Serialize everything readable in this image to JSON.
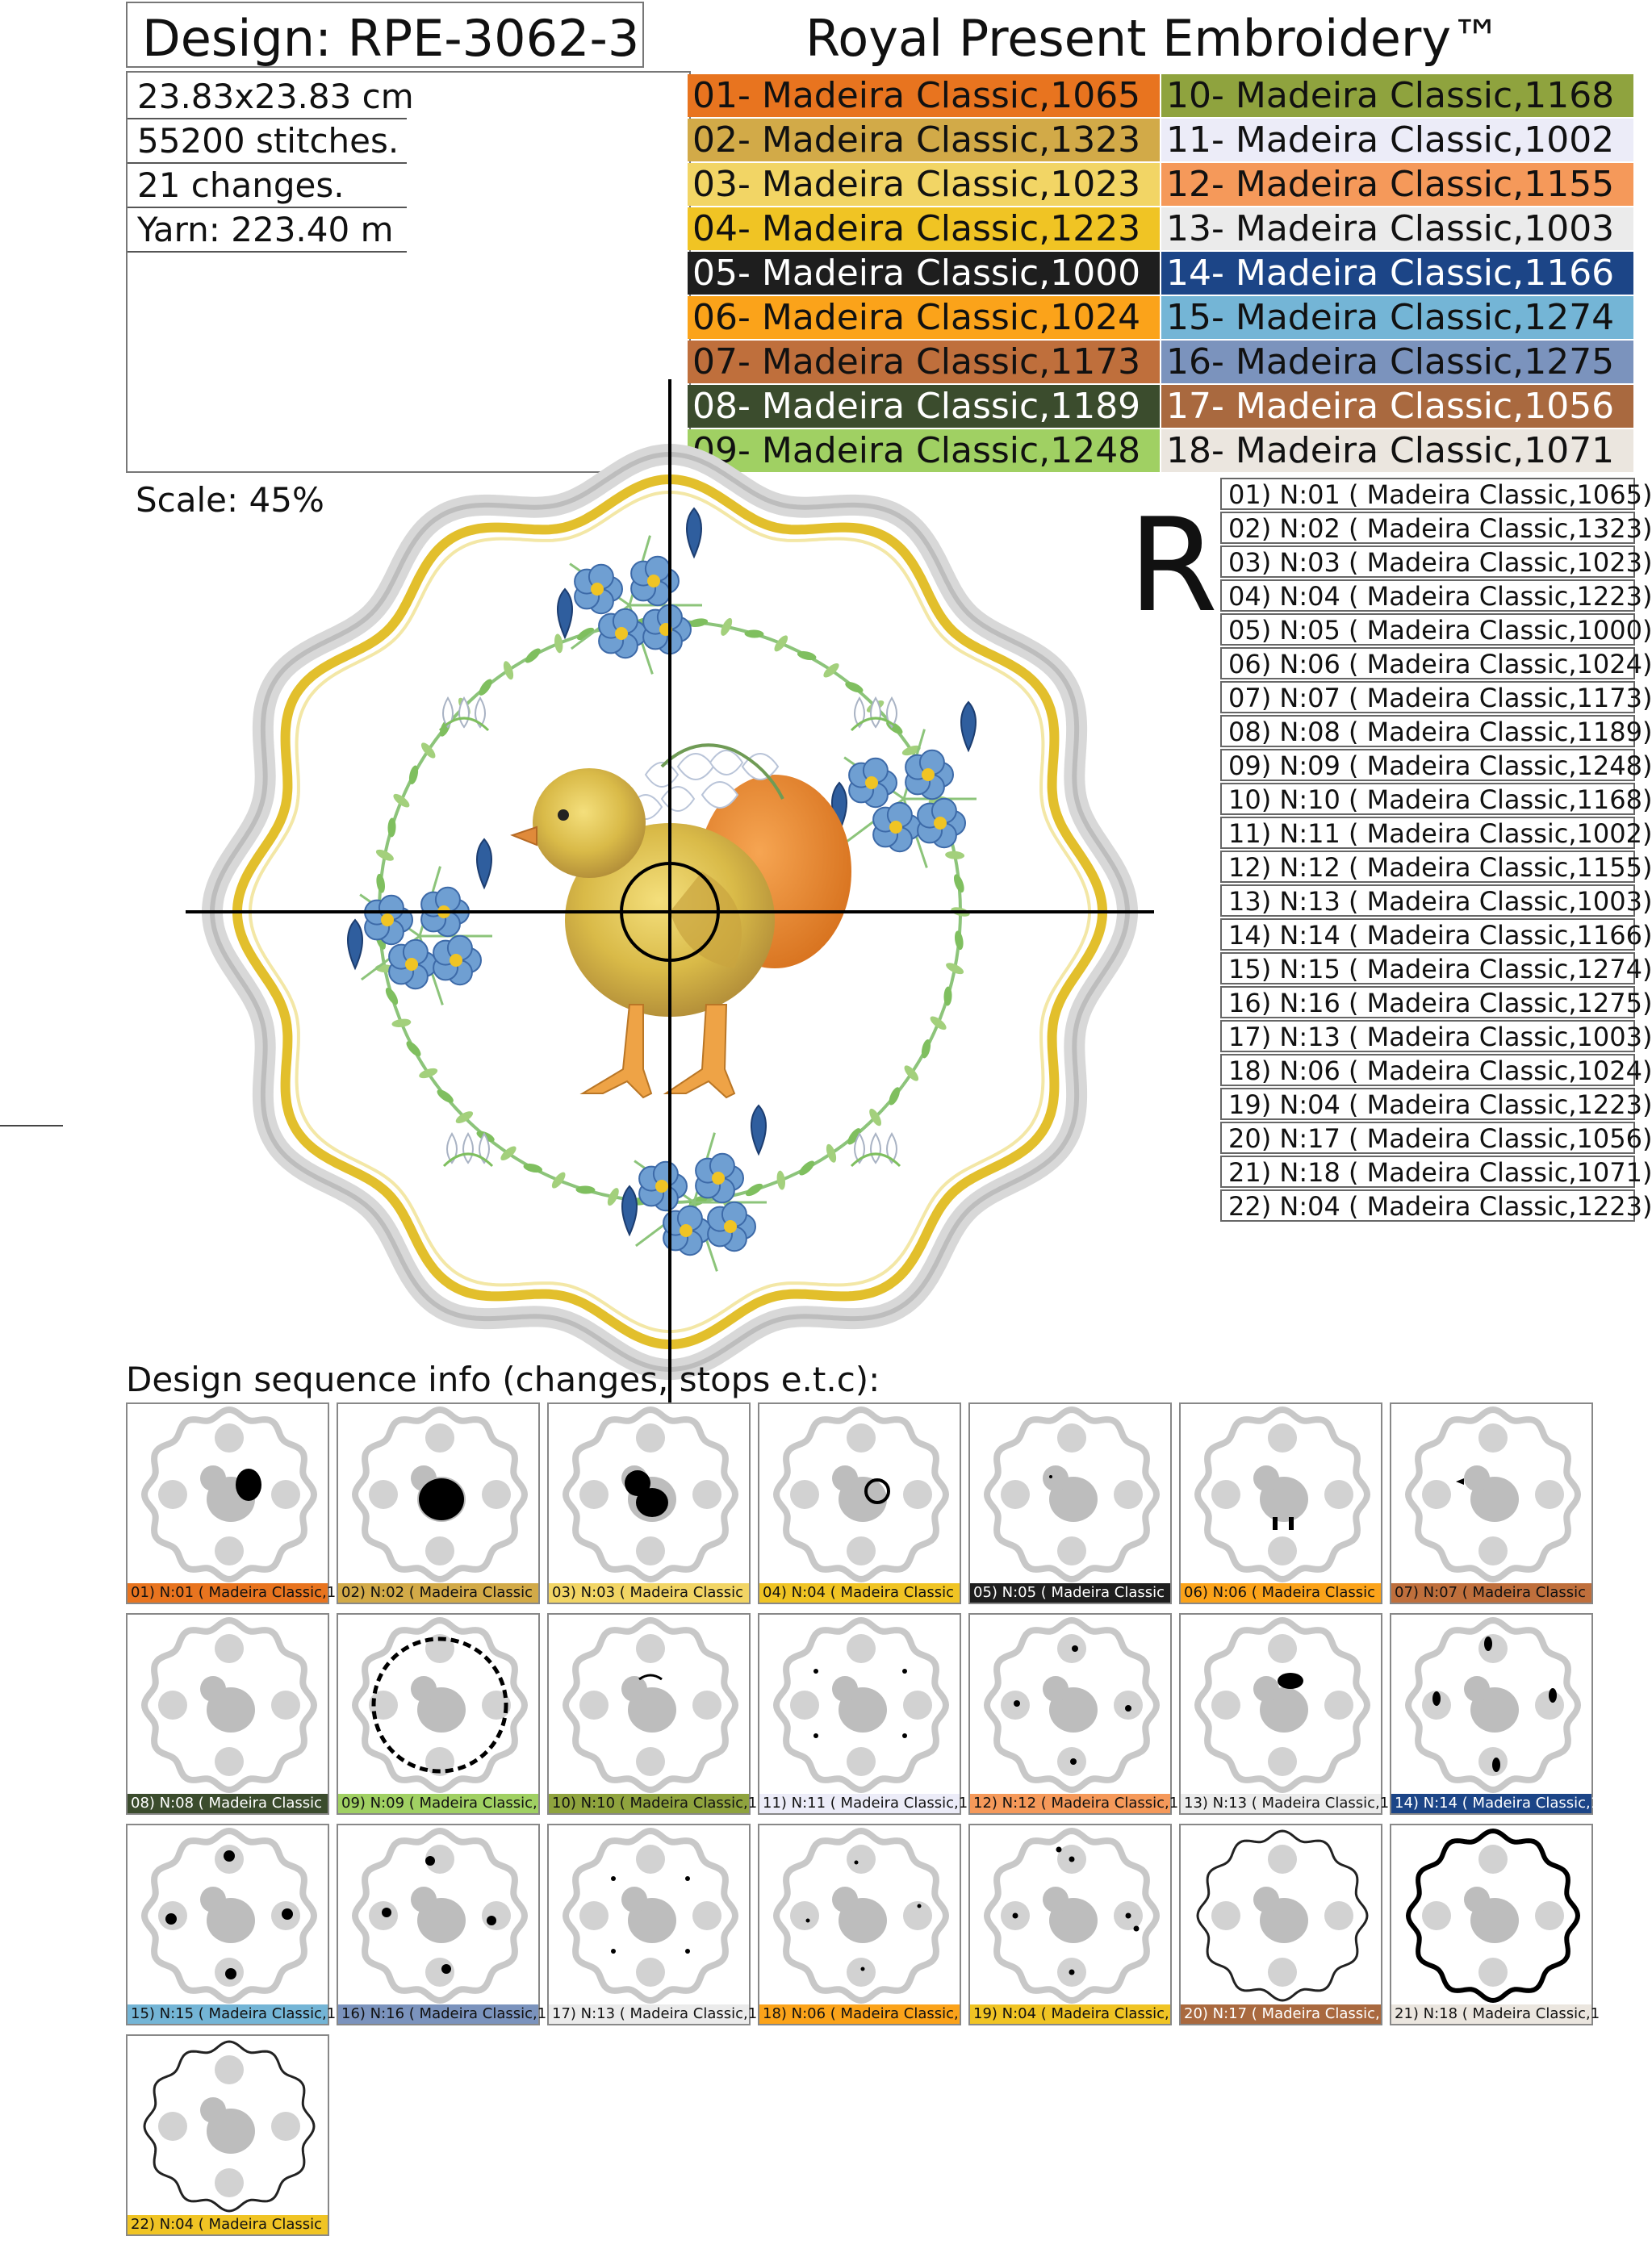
{
  "header": {
    "design_title": "Design: RPE-3062-3",
    "brand": "Royal Present Embroidery™"
  },
  "info": {
    "size": "23.83x23.83 cm",
    "stitches": "55200 stitches.",
    "changes": "21 changes.",
    "yarn": "Yarn: 223.40 m"
  },
  "palette": [
    {
      "label": "01- Madeira Classic,1065",
      "color": "#e8741f",
      "text": "#111111"
    },
    {
      "label": "02- Madeira Classic,1323",
      "color": "#d2aa48",
      "text": "#111111"
    },
    {
      "label": "03- Madeira Classic,1023",
      "color": "#f2d565",
      "text": "#111111"
    },
    {
      "label": "04- Madeira Classic,1223",
      "color": "#f0c424",
      "text": "#111111"
    },
    {
      "label": "05- Madeira Classic,1000",
      "color": "#1e1e1e",
      "text": "#ffffff"
    },
    {
      "label": "06- Madeira Classic,1024",
      "color": "#fba31a",
      "text": "#111111"
    },
    {
      "label": "07- Madeira Classic,1173",
      "color": "#bf6f3c",
      "text": "#111111"
    },
    {
      "label": "08- Madeira Classic,1189",
      "color": "#3b4c2d",
      "text": "#ffffff"
    },
    {
      "label": "09- Madeira Classic,1248",
      "color": "#a0d063",
      "text": "#111111"
    },
    {
      "label": "10- Madeira Classic,1168",
      "color": "#8fa33e",
      "text": "#111111"
    },
    {
      "label": "11- Madeira Classic,1002",
      "color": "#ececf8",
      "text": "#111111"
    },
    {
      "label": "12- Madeira Classic,1155",
      "color": "#f5995a",
      "text": "#111111"
    },
    {
      "label": "13- Madeira Classic,1003",
      "color": "#ebebeb",
      "text": "#111111"
    },
    {
      "label": "14- Madeira Classic,1166",
      "color": "#1c4587",
      "text": "#ffffff"
    },
    {
      "label": "15- Madeira Classic,1274",
      "color": "#74b5d6",
      "text": "#111111"
    },
    {
      "label": "16- Madeira Classic,1275",
      "color": "#7b93bd",
      "text": "#111111"
    },
    {
      "label": "17- Madeira Classic,1056",
      "color": "#a9693f",
      "text": "#ffffff"
    },
    {
      "label": "18- Madeira Classic,1071",
      "color": "#ebe6df",
      "text": "#111111"
    }
  ],
  "scale": "Scale: 45%",
  "r_mark": "R",
  "stops": [
    "01) N:01 ( Madeira Classic,1065)",
    "02) N:02 ( Madeira Classic,1323)",
    "03) N:03 ( Madeira Classic,1023)",
    "04) N:04 ( Madeira Classic,1223)",
    "05) N:05 ( Madeira Classic,1000)",
    "06) N:06 ( Madeira Classic,1024)",
    "07) N:07 ( Madeira Classic,1173)",
    "08) N:08 ( Madeira Classic,1189)",
    "09) N:09 ( Madeira Classic,1248)",
    "10) N:10 ( Madeira Classic,1168)",
    "11) N:11 ( Madeira Classic,1002)",
    "12) N:12 ( Madeira Classic,1155)",
    "13) N:13 ( Madeira Classic,1003)",
    "14) N:14 ( Madeira Classic,1166)",
    "15) N:15 ( Madeira Classic,1274)",
    "16) N:16 ( Madeira Classic,1275)",
    "17) N:13 ( Madeira Classic,1003)",
    "18) N:06 ( Madeira Classic,1024)",
    "19) N:04 ( Madeira Classic,1223)",
    "20) N:17 ( Madeira Classic,1056)",
    "21) N:18 ( Madeira Classic,1071)",
    "22) N:04 ( Madeira Classic,1223)"
  ],
  "sequence_title": "Design sequence info (changes, stops e.t.c):",
  "thumbnails": [
    {
      "caption": "01) N:01 ( Madeira Classic,1",
      "color": "#e8741f",
      "text": "#111111",
      "part": "egg"
    },
    {
      "caption": "02) N:02 ( Madeira Classic",
      "color": "#d2aa48",
      "text": "#111111",
      "part": "chick-body"
    },
    {
      "caption": "03) N:03 ( Madeira Classic",
      "color": "#f2d565",
      "text": "#111111",
      "part": "chick-head"
    },
    {
      "caption": "04) N:04 ( Madeira Classic",
      "color": "#f0c424",
      "text": "#111111",
      "part": "chick-detail"
    },
    {
      "caption": "05) N:05 ( Madeira Classic",
      "color": "#1e1e1e",
      "text": "#ffffff",
      "part": "eye"
    },
    {
      "caption": "06) N:06 ( Madeira Classic",
      "color": "#fba31a",
      "text": "#111111",
      "part": "legs"
    },
    {
      "caption": "07) N:07 ( Madeira Classic",
      "color": "#bf6f3c",
      "text": "#111111",
      "part": "beak"
    },
    {
      "caption": "08) N:08 ( Madeira Classic",
      "color": "#3b4c2d",
      "text": "#ffffff",
      "part": "none"
    },
    {
      "caption": "09) N:09 ( Madeira Classic,",
      "color": "#a0d063",
      "text": "#111111",
      "part": "wreath"
    },
    {
      "caption": "10) N:10 ( Madeira Classic,1",
      "color": "#8fa33e",
      "text": "#111111",
      "part": "stems"
    },
    {
      "caption": "11) N:11 ( Madeira Classic,10",
      "color": "#ececf8",
      "text": "#111111",
      "part": "snowdrops"
    },
    {
      "caption": "12) N:12 ( Madeira Classic,1",
      "color": "#f5995a",
      "text": "#111111",
      "part": "flowers-small"
    },
    {
      "caption": "13) N:13 ( Madeira Classic,1",
      "color": "#ebebeb",
      "text": "#111111",
      "part": "flowers-top"
    },
    {
      "caption": "14) N:14 ( Madeira Classic,1",
      "color": "#1c4587",
      "text": "#ffffff",
      "part": "crocus"
    },
    {
      "caption": "15) N:15 ( Madeira Classic,1",
      "color": "#74b5d6",
      "text": "#111111",
      "part": "forget-me-not"
    },
    {
      "caption": "16) N:16 ( Madeira Classic,1",
      "color": "#7b93bd",
      "text": "#111111",
      "part": "forget-me-not-2"
    },
    {
      "caption": "17) N:13 ( Madeira Classic,1",
      "color": "#ebebeb",
      "text": "#111111",
      "part": "snowdrop-tips"
    },
    {
      "caption": "18) N:06 ( Madeira Classic,",
      "color": "#fba31a",
      "text": "#111111",
      "part": "dots-small"
    },
    {
      "caption": "19) N:04 ( Madeira Classic,",
      "color": "#f0c424",
      "text": "#111111",
      "part": "dots"
    },
    {
      "caption": "20) N:17 ( Madeira Classic,",
      "color": "#a9693f",
      "text": "#ffffff",
      "part": "border-thin"
    },
    {
      "caption": "21) N:18 ( Madeira Classic,1",
      "color": "#ebe6df",
      "text": "#111111",
      "part": "border-thick"
    },
    {
      "caption": "22) N:04 ( Madeira Classic",
      "color": "#f0c424",
      "text": "#111111",
      "part": "border-inner"
    }
  ]
}
